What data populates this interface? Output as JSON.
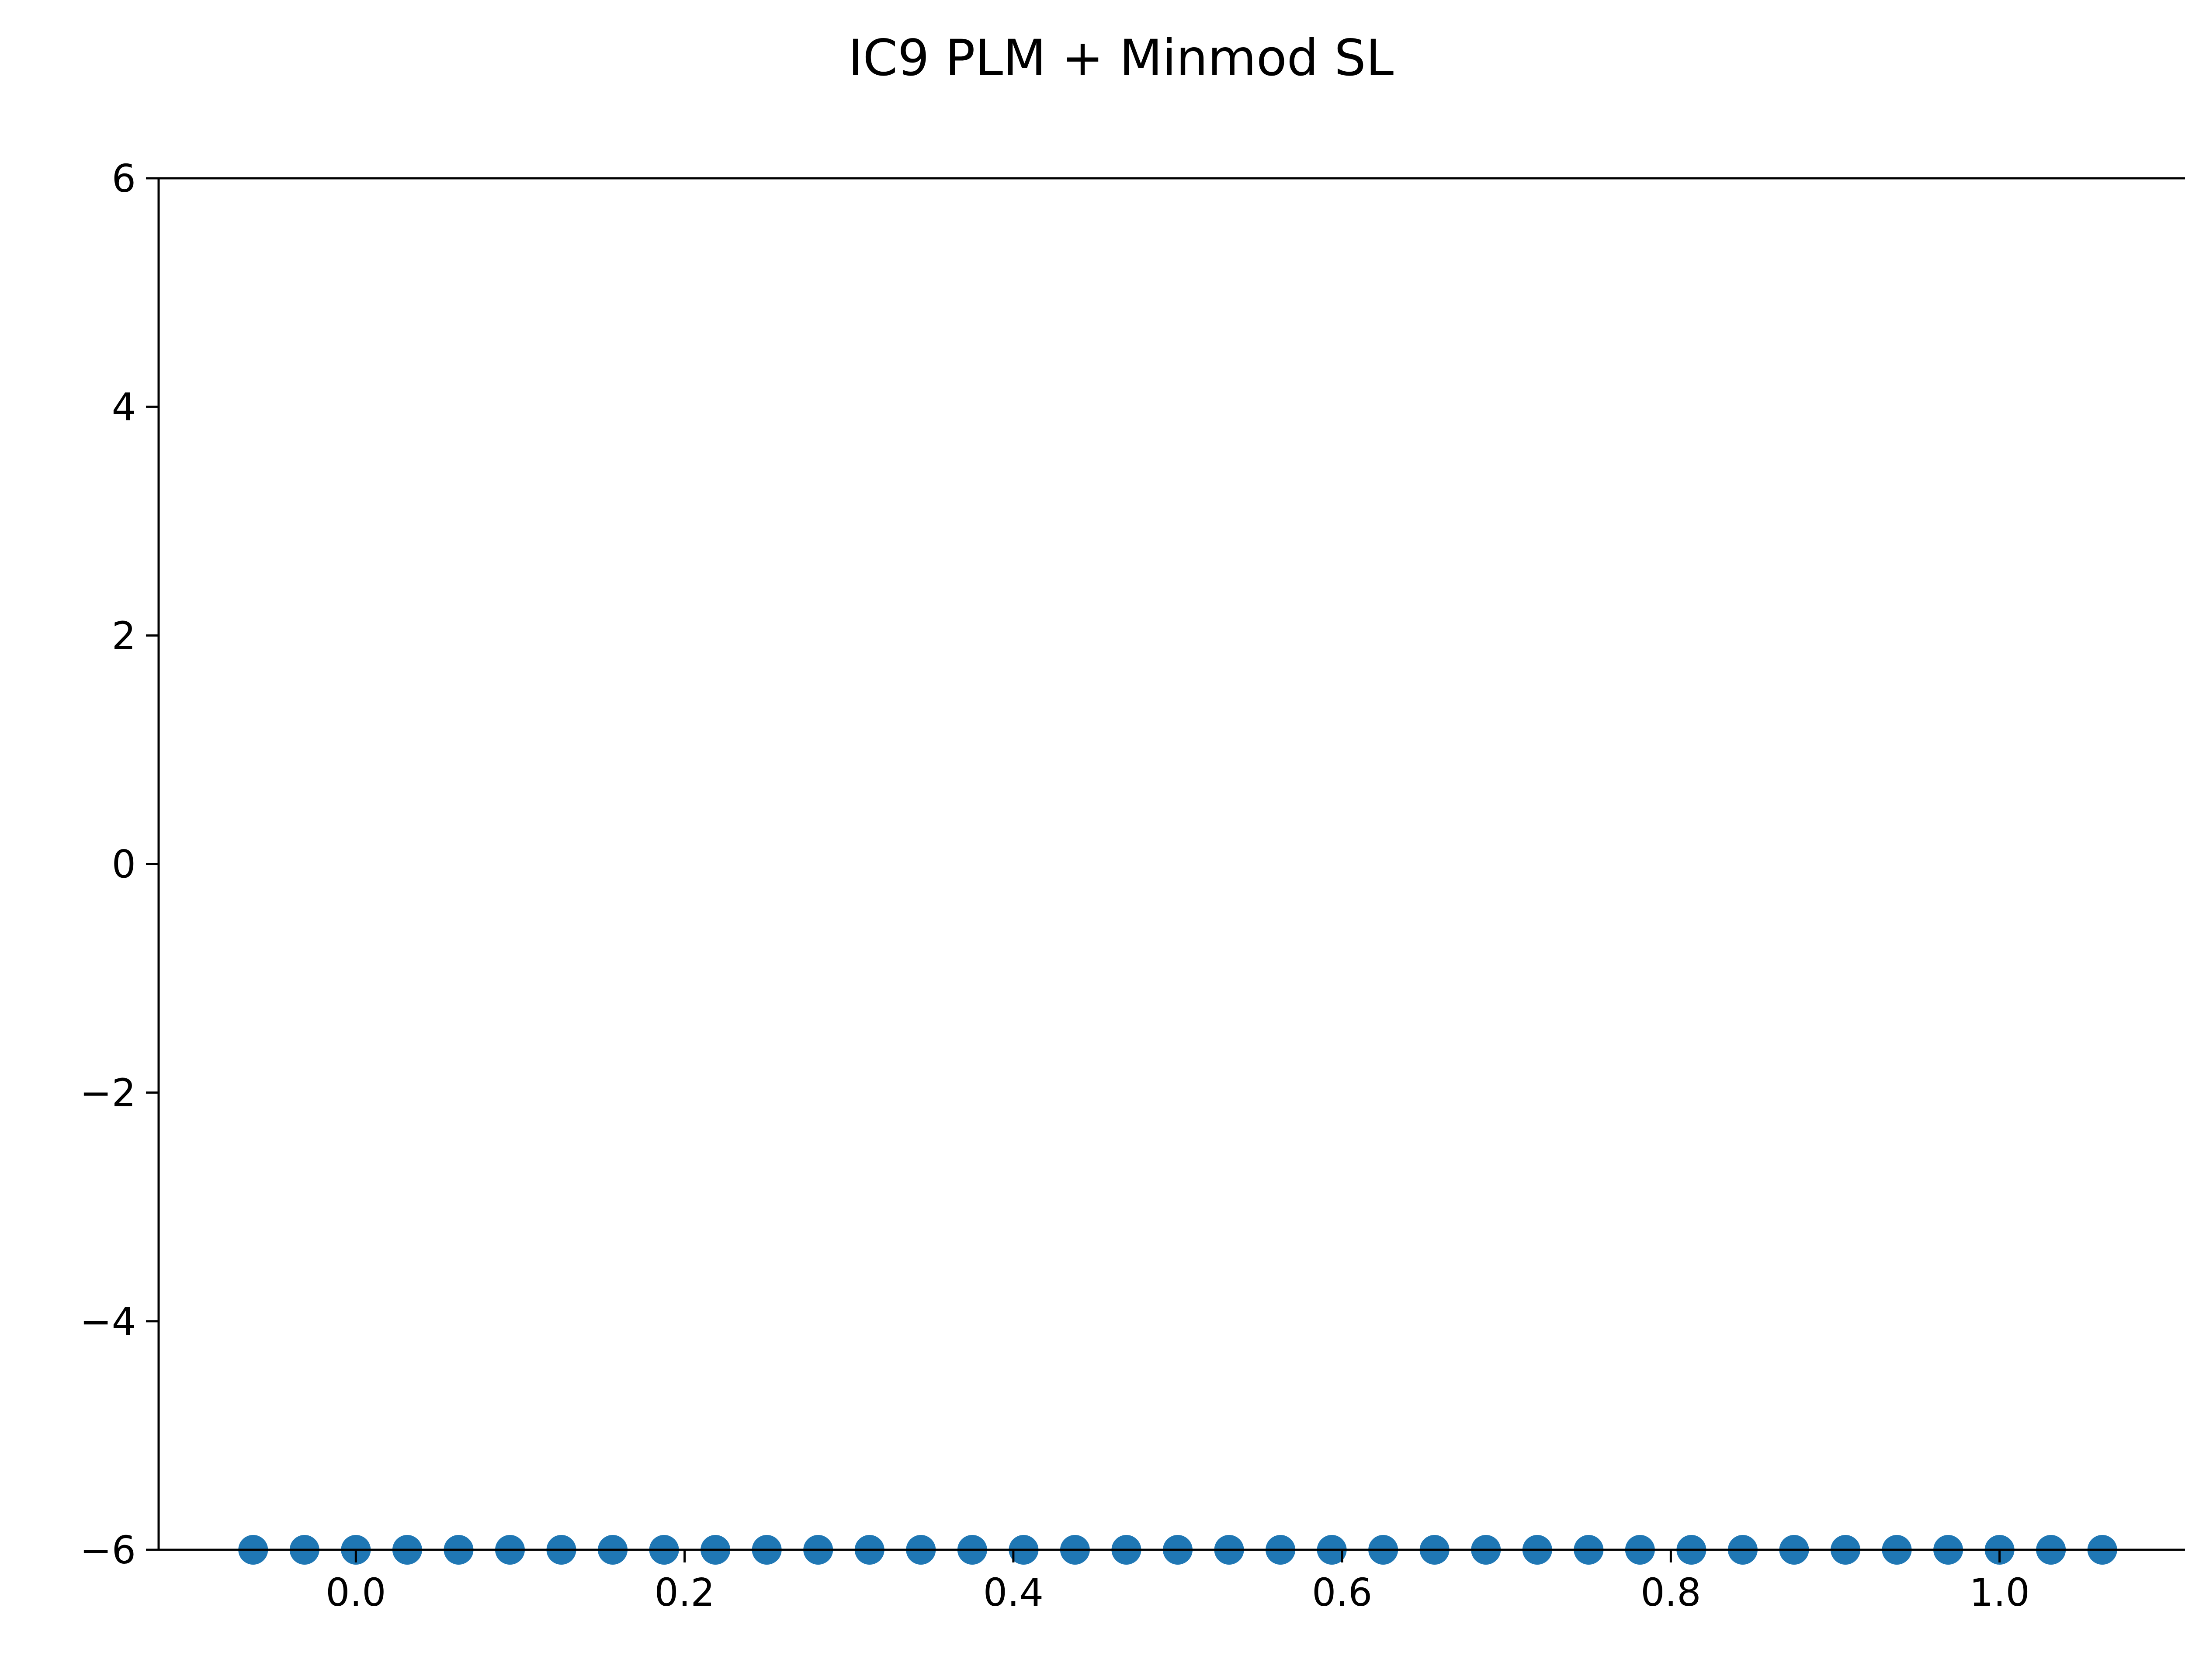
{
  "chart_data": {
    "type": "scatter",
    "title": "IC9 PLM + Minmod SL",
    "xlabel": "",
    "ylabel": "",
    "xlim": [
      -0.12,
      1.12
    ],
    "ylim": [
      -6,
      6
    ],
    "xticks": [
      0.0,
      0.2,
      0.4,
      0.6,
      0.8,
      1.0
    ],
    "xtick_labels": [
      "0.0",
      "0.2",
      "0.4",
      "0.6",
      "0.8",
      "1.0"
    ],
    "yticks": [
      -6,
      -4,
      -2,
      0,
      2,
      4,
      6
    ],
    "ytick_labels": [
      "−6",
      "−4",
      "−2",
      "0",
      "2",
      "4",
      "6"
    ],
    "grid": false,
    "legend": "none",
    "colors": {
      "marker": "#1f77b4",
      "axes": "#000000"
    },
    "series": [
      {
        "x": [
          -0.0625,
          -0.03125,
          0.0,
          0.03125,
          0.0625,
          0.09375,
          0.125,
          0.15625,
          0.1875,
          0.21875,
          0.25,
          0.28125,
          0.3125,
          0.34375,
          0.375,
          0.40625,
          0.4375,
          0.46875,
          0.5,
          0.53125,
          0.5625,
          0.59375,
          0.625,
          0.65625,
          0.6875,
          0.71875,
          0.75,
          0.78125,
          0.8125,
          0.84375,
          0.875,
          0.90625,
          0.9375,
          0.96875,
          1.0,
          1.03125,
          1.0625
        ],
        "y": [
          -6,
          -6,
          -6,
          -6,
          -6,
          -6,
          -6,
          -6,
          -6,
          -6,
          -6,
          -6,
          -6,
          -6,
          -6,
          -6,
          -6,
          -6,
          -6,
          -6,
          -6,
          -6,
          -6,
          -6,
          -6,
          -6,
          -6,
          -6,
          -6,
          -6,
          -6,
          -6,
          -6,
          -6,
          -6,
          -6,
          -6
        ]
      }
    ]
  }
}
